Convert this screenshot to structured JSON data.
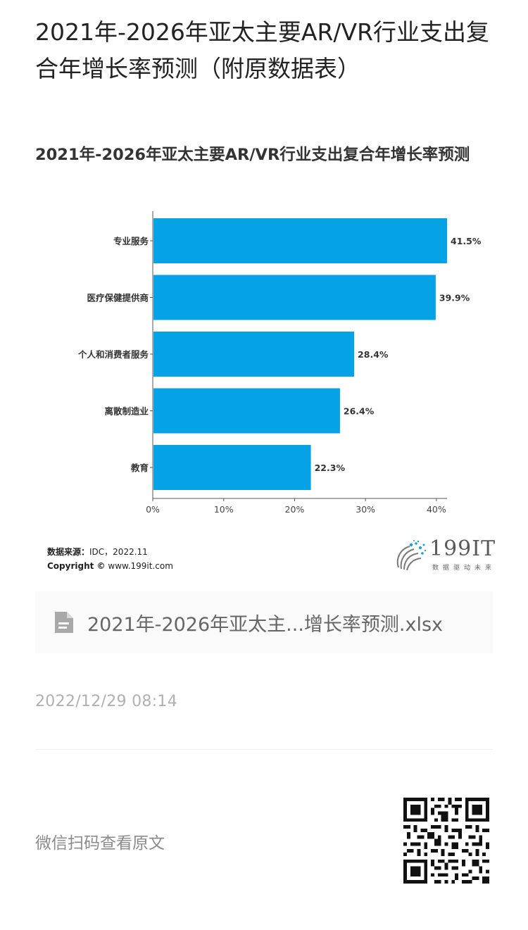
{
  "article": {
    "title": "2021年-2026年亚太主要AR/VR行业支出复合年增长率预测（附原数据表）"
  },
  "chart_data": {
    "type": "bar",
    "orientation": "horizontal",
    "title": "2021年-2026年亚太主要AR/VR行业支出复合年增长率预测",
    "categories": [
      "专业服务",
      "医疗保健提供商",
      "个人和消费者服务",
      "离散制造业",
      "教育"
    ],
    "values": [
      41.5,
      39.9,
      28.4,
      26.4,
      22.3
    ],
    "value_labels": [
      "41.5%",
      "39.9%",
      "28.4%",
      "26.4%",
      "22.3%"
    ],
    "xticks": [
      "0%",
      "10%",
      "20%",
      "30%",
      "40%"
    ],
    "xtick_values": [
      0,
      10,
      20,
      30,
      40
    ],
    "xlim": [
      0,
      41.5
    ],
    "bar_color": "#06a2e6",
    "grid": false,
    "legend": "none"
  },
  "source": {
    "label": "数据来源：",
    "value": "IDC，2022.11",
    "copyright_label": "Copyright ©",
    "site": "www.199it.com"
  },
  "logo": {
    "text": "199IT",
    "slogan": "数据驱动未来"
  },
  "attachment": {
    "filename": "2021年-2026年亚太主...增长率预测.xlsx",
    "icon": "file-icon"
  },
  "meta": {
    "timestamp": "2022/12/29 08:14"
  },
  "footer": {
    "wechat_text": "微信扫码查看原文",
    "qr_icon": "qr-code-icon"
  },
  "colors": {
    "bar": "#06a2e6",
    "muted_text": "#b0b0b0"
  }
}
